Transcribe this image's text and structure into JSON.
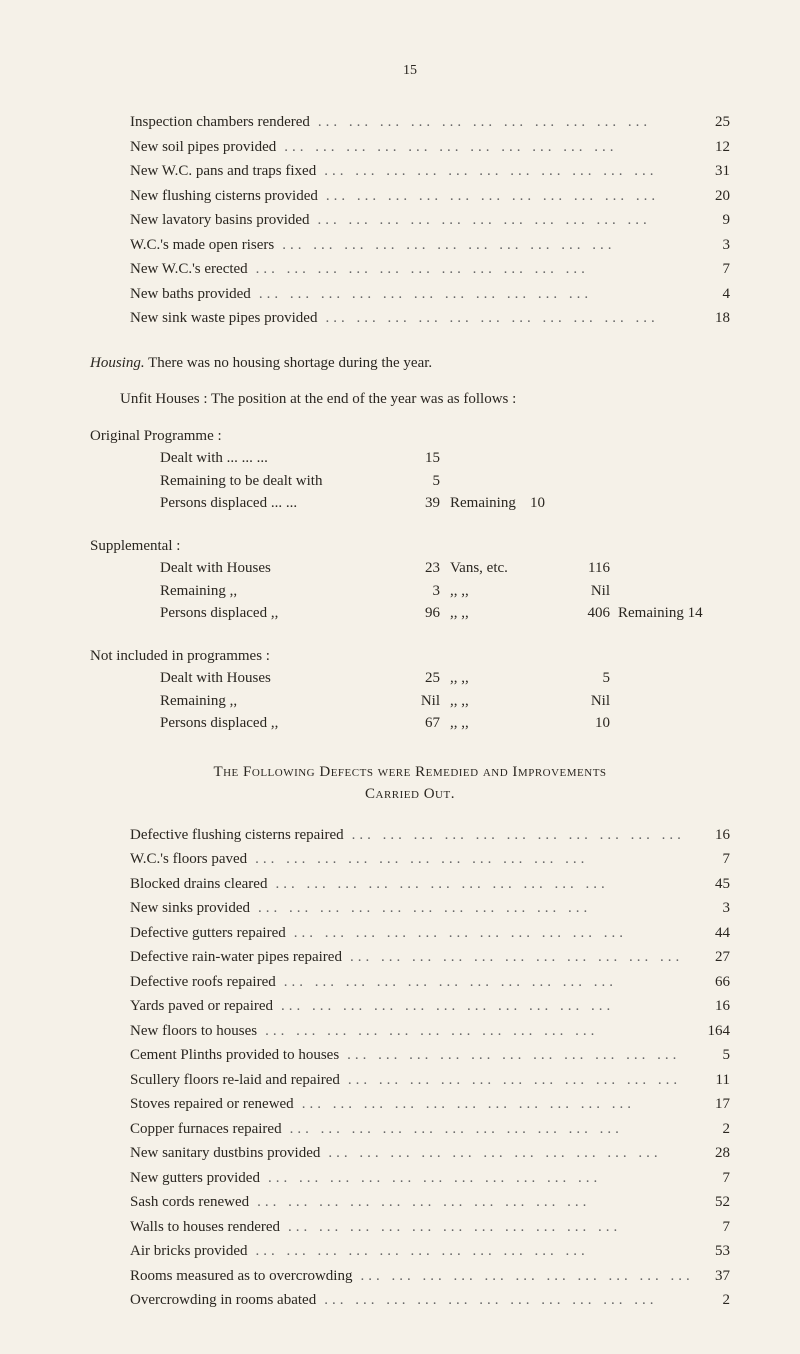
{
  "pageNumber": "15",
  "topList": [
    {
      "label": "Inspection chambers rendered",
      "value": "25"
    },
    {
      "label": "New soil pipes provided",
      "value": "12"
    },
    {
      "label": "New W.C. pans and traps fixed",
      "value": "31"
    },
    {
      "label": "New flushing cisterns provided",
      "value": "20"
    },
    {
      "label": "New lavatory basins provided",
      "value": "9"
    },
    {
      "label": "W.C.'s made open risers",
      "value": "3"
    },
    {
      "label": "New W.C.'s erected",
      "value": "7"
    },
    {
      "label": "New baths provided",
      "value": "4"
    },
    {
      "label": "New sink waste pipes provided",
      "value": "18"
    }
  ],
  "housing": {
    "lead": "Housing.",
    "sentence": " There was no housing shortage during the year.",
    "unfit": "Unfit Houses : The position at the end of the year was as follows :",
    "original": {
      "title": "Original Programme :",
      "rows": [
        {
          "label": "Dealt with ...   ...   ...",
          "c1": "15",
          "c2": "",
          "c3": "",
          "c4": "",
          "tail": ""
        },
        {
          "label": "Remaining to be dealt with",
          "c1": "5",
          "c2": "",
          "c3": "",
          "c4": "",
          "tail": ""
        },
        {
          "label": "Persons displaced ...   ...",
          "c1": "39",
          "c2": "Remaining",
          "c3": "10",
          "c4": "",
          "tail": ""
        }
      ]
    },
    "supplemental": {
      "title": "Supplemental :",
      "rows": [
        {
          "label": "Dealt with   Houses",
          "c1": "23",
          "c2": "Vans, etc.",
          "c3": "",
          "c4": "116",
          "tail": ""
        },
        {
          "label": "Remaining        ,,",
          "c1": "3",
          "c2": "     ,,        ,,",
          "c3": "",
          "c4": "Nil",
          "tail": ""
        },
        {
          "label": "Persons displaced ,,",
          "c1": "96",
          "c2": "     ,,        ,,",
          "c3": "",
          "c4": "406",
          "tail": "Remaining 14"
        }
      ]
    },
    "notIncluded": {
      "title": "Not included in programmes :",
      "rows": [
        {
          "label": "Dealt with     Houses",
          "c1": "25",
          "c2": "     ,,        ,,",
          "c3": "",
          "c4": "5",
          "tail": ""
        },
        {
          "label": "Remaining         ,,",
          "c1": "Nil",
          "c2": "     ,,        ,,",
          "c3": "",
          "c4": "Nil",
          "tail": ""
        },
        {
          "label": "Persons displaced ,,",
          "c1": "67",
          "c2": "     ,,        ,,",
          "c3": "",
          "c4": "10",
          "tail": ""
        }
      ]
    }
  },
  "defectsHeading": {
    "line1": "The Following Defects were Remedied and Improvements",
    "line2": "Carried Out."
  },
  "defectsList": [
    {
      "label": "Defective flushing cisterns repaired",
      "value": "16"
    },
    {
      "label": "W.C.'s floors paved",
      "value": "7"
    },
    {
      "label": "Blocked drains cleared",
      "value": "45"
    },
    {
      "label": "New sinks provided",
      "value": "3"
    },
    {
      "label": "Defective gutters repaired",
      "value": "44"
    },
    {
      "label": "Defective rain-water pipes repaired",
      "value": "27"
    },
    {
      "label": "Defective roofs repaired",
      "value": "66"
    },
    {
      "label": "Yards paved or repaired",
      "value": "16"
    },
    {
      "label": "New floors to houses",
      "value": "164"
    },
    {
      "label": "Cement Plinths provided to houses",
      "value": "5"
    },
    {
      "label": "Scullery floors re-laid and repaired",
      "value": "11"
    },
    {
      "label": "Stoves repaired or renewed",
      "value": "17"
    },
    {
      "label": "Copper furnaces repaired",
      "value": "2"
    },
    {
      "label": "New sanitary dustbins provided",
      "value": "28"
    },
    {
      "label": "New gutters provided",
      "value": "7"
    },
    {
      "label": "Sash cords renewed",
      "value": "52"
    },
    {
      "label": "Walls to houses rendered",
      "value": "7"
    },
    {
      "label": "Air bricks provided",
      "value": "53"
    },
    {
      "label": "Rooms measured as to overcrowding",
      "value": "37"
    },
    {
      "label": "Overcrowding in rooms abated",
      "value": "2"
    }
  ]
}
